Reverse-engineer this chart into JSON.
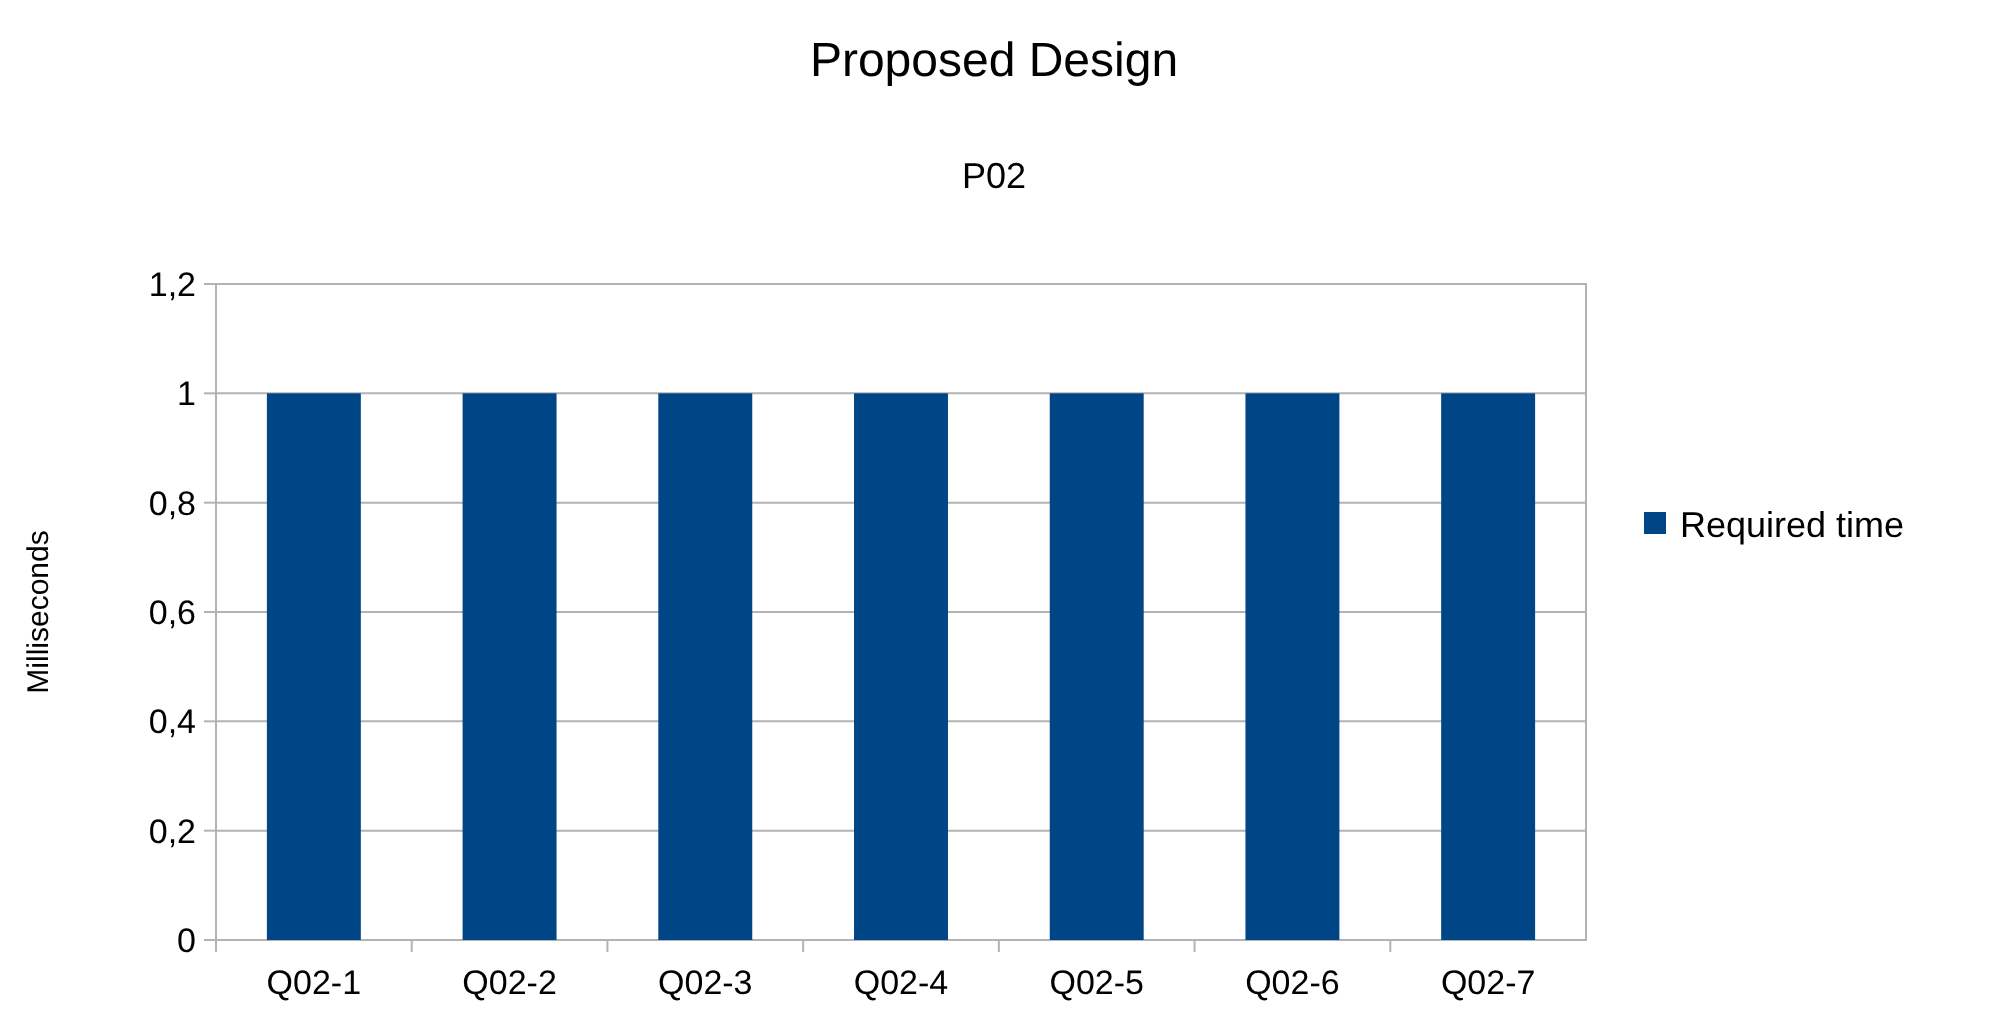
{
  "chart_data": {
    "type": "bar",
    "title": "Proposed Design",
    "subtitle": "P02",
    "ylabel": "Milliseconds",
    "categories": [
      "Q02-1",
      "Q02-2",
      "Q02-3",
      "Q02-4",
      "Q02-5",
      "Q02-6",
      "Q02-7"
    ],
    "series": [
      {
        "name": "Required time",
        "color": "#004586",
        "values": [
          1,
          1,
          1,
          1,
          1,
          1,
          1
        ]
      }
    ],
    "ylim": [
      0,
      1.2
    ],
    "yticks": [
      0,
      {
        "value": 0.2,
        "label": "0,2"
      },
      {
        "value": 0.4,
        "label": "0,4"
      },
      {
        "value": 0.6,
        "label": "0,6"
      },
      {
        "value": 0.8,
        "label": "0,8"
      },
      1,
      {
        "value": 1.2,
        "label": "1,2"
      }
    ],
    "grid": "y",
    "legend": "right"
  }
}
